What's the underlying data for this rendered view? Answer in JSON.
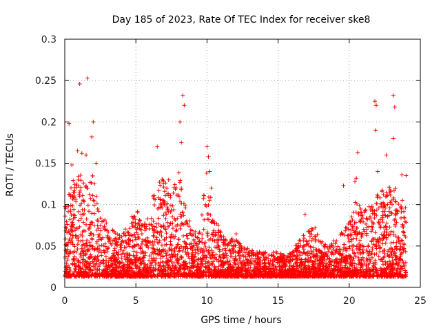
{
  "chart_data": {
    "type": "scatter",
    "title": "Day 185 of 2023, Rate Of TEC Index for receiver ske8",
    "xlabel": "GPS time / hours",
    "ylabel": "ROTI / TECUs",
    "xlim": [
      0,
      25
    ],
    "ylim": [
      0,
      0.3
    ],
    "xticks": [
      0,
      5,
      10,
      15,
      20,
      25
    ],
    "xtick_labels": [
      "0",
      "5",
      "10",
      "15",
      "20",
      "25"
    ],
    "yticks": [
      0,
      0.05,
      0.1,
      0.15,
      0.2,
      0.25,
      0.3
    ],
    "ytick_labels": [
      "0",
      "0.05",
      "0.1",
      "0.15",
      "0.2",
      "0.25",
      "0.3"
    ],
    "grid": true,
    "marker": "+",
    "color": "#ff0000",
    "series": [
      {
        "name": "ske8",
        "points": [
          [
            0.3,
            0.198
          ],
          [
            1.05,
            0.246
          ],
          [
            1.6,
            0.253
          ],
          [
            0.5,
            0.148
          ],
          [
            0.9,
            0.165
          ],
          [
            1.2,
            0.162
          ],
          [
            1.5,
            0.16
          ],
          [
            1.9,
            0.182
          ],
          [
            2.0,
            0.2
          ],
          [
            2.2,
            0.15
          ],
          [
            6.5,
            0.17
          ],
          [
            7.3,
            0.13
          ],
          [
            8.1,
            0.2
          ],
          [
            8.3,
            0.232
          ],
          [
            8.4,
            0.22
          ],
          [
            8.2,
            0.175
          ],
          [
            10.0,
            0.17
          ],
          [
            10.1,
            0.158
          ],
          [
            10.2,
            0.14
          ],
          [
            10.3,
            0.12
          ],
          [
            16.9,
            0.088
          ],
          [
            17.6,
            0.072
          ],
          [
            19.6,
            0.123
          ],
          [
            20.4,
            0.128
          ],
          [
            20.6,
            0.163
          ],
          [
            20.5,
            0.132
          ],
          [
            21.8,
            0.225
          ],
          [
            21.9,
            0.22
          ],
          [
            21.85,
            0.19
          ],
          [
            22.0,
            0.14
          ],
          [
            22.6,
            0.16
          ],
          [
            23.1,
            0.232
          ],
          [
            23.2,
            0.218
          ],
          [
            23.1,
            0.18
          ],
          [
            23.7,
            0.136
          ],
          [
            24.0,
            0.135
          ]
        ]
      }
    ],
    "density_envelope": {
      "hours": [
        0,
        0.5,
        1,
        1.5,
        2,
        2.5,
        3,
        3.5,
        4,
        4.5,
        5,
        5.5,
        6,
        6.5,
        7,
        7.5,
        8,
        8.5,
        9,
        9.5,
        10,
        10.5,
        11,
        11.5,
        12,
        12.5,
        13,
        13.5,
        14,
        14.5,
        15,
        15.5,
        16,
        16.5,
        17,
        17.5,
        18,
        18.5,
        19,
        19.5,
        20,
        20.5,
        21,
        21.5,
        22,
        22.5,
        23,
        23.5,
        24
      ],
      "upper": [
        0.09,
        0.12,
        0.13,
        0.12,
        0.13,
        0.08,
        0.07,
        0.06,
        0.055,
        0.07,
        0.09,
        0.07,
        0.09,
        0.12,
        0.13,
        0.1,
        0.14,
        0.09,
        0.06,
        0.06,
        0.14,
        0.08,
        0.06,
        0.045,
        0.06,
        0.04,
        0.04,
        0.035,
        0.035,
        0.035,
        0.035,
        0.03,
        0.04,
        0.05,
        0.06,
        0.065,
        0.05,
        0.045,
        0.05,
        0.06,
        0.07,
        0.1,
        0.09,
        0.09,
        0.11,
        0.11,
        0.12,
        0.11,
        0.09
      ],
      "lower": 0.005
    }
  }
}
